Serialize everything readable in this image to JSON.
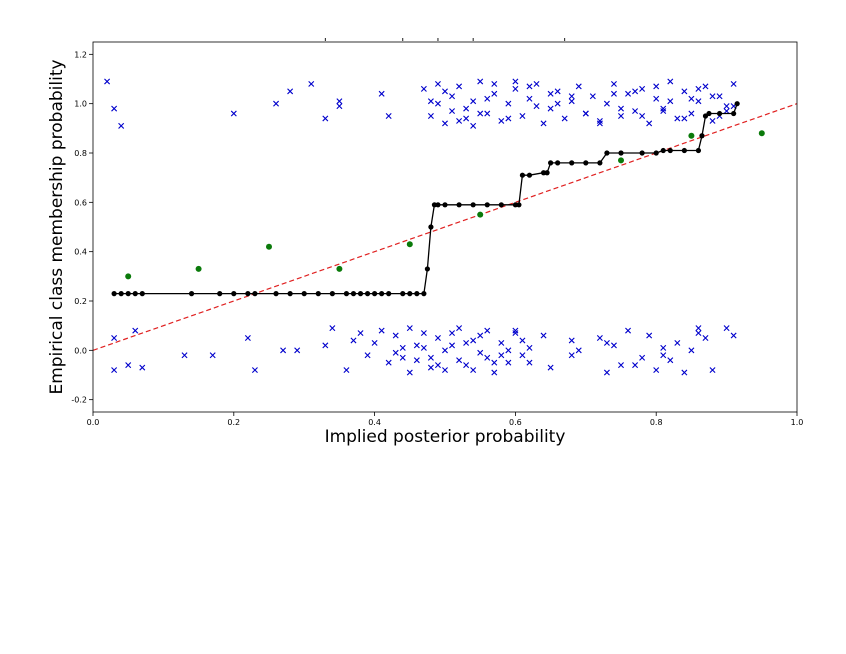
{
  "chart_data": {
    "type": "scatter",
    "xlabel": "Implied posterior probability",
    "ylabel": "Empirical class membership probability",
    "xlim": [
      0.0,
      1.0
    ],
    "ylim": [
      -0.25,
      1.25
    ],
    "x_ticks": [
      0.0,
      0.2,
      0.4,
      0.6,
      0.8,
      1.0
    ],
    "x_tick_labels": [
      "0.0",
      "0.2",
      "0.4",
      "0.6",
      "0.8",
      "1.0"
    ],
    "y_ticks": [
      -0.2,
      0.0,
      0.2,
      0.4,
      0.6,
      0.8,
      1.0,
      1.2
    ],
    "y_tick_labels": [
      "-0.2",
      "0.0",
      "0.2",
      "0.4",
      "0.6",
      "0.8",
      "1.0",
      "1.2"
    ],
    "grid": false,
    "legend": "none",
    "colors": {
      "class_points": "#0000cc",
      "calibration_curve": "#000000",
      "binned_points": "#0a7a0a",
      "reference_line": "#e02020"
    },
    "series": [
      {
        "kind": "reference_line",
        "style": "dashed",
        "x": [
          0.0,
          1.0
        ],
        "y": [
          0.0,
          1.0
        ]
      },
      {
        "kind": "step_curve",
        "marker": "circle",
        "x": [
          0.03,
          0.04,
          0.05,
          0.06,
          0.07,
          0.14,
          0.18,
          0.2,
          0.22,
          0.23,
          0.26,
          0.28,
          0.3,
          0.32,
          0.34,
          0.36,
          0.37,
          0.38,
          0.39,
          0.4,
          0.41,
          0.42,
          0.44,
          0.45,
          0.46,
          0.47,
          0.475,
          0.48,
          0.485,
          0.49,
          0.5,
          0.52,
          0.54,
          0.56,
          0.58,
          0.6,
          0.605,
          0.61,
          0.62,
          0.64,
          0.645,
          0.65,
          0.66,
          0.68,
          0.7,
          0.72,
          0.73,
          0.75,
          0.78,
          0.8,
          0.81,
          0.82,
          0.84,
          0.86,
          0.865,
          0.87,
          0.875,
          0.89,
          0.91,
          0.915
        ],
        "y": [
          0.23,
          0.23,
          0.23,
          0.23,
          0.23,
          0.23,
          0.23,
          0.23,
          0.23,
          0.23,
          0.23,
          0.23,
          0.23,
          0.23,
          0.23,
          0.23,
          0.23,
          0.23,
          0.23,
          0.23,
          0.23,
          0.23,
          0.23,
          0.23,
          0.23,
          0.23,
          0.33,
          0.5,
          0.59,
          0.59,
          0.59,
          0.59,
          0.59,
          0.59,
          0.59,
          0.59,
          0.59,
          0.71,
          0.71,
          0.72,
          0.72,
          0.76,
          0.76,
          0.76,
          0.76,
          0.76,
          0.8,
          0.8,
          0.8,
          0.8,
          0.81,
          0.81,
          0.81,
          0.81,
          0.87,
          0.95,
          0.96,
          0.96,
          0.96,
          1.0
        ]
      },
      {
        "kind": "binned_points",
        "marker": "circle",
        "x": [
          0.05,
          0.15,
          0.25,
          0.35,
          0.45,
          0.55,
          0.75,
          0.85,
          0.95
        ],
        "y": [
          0.3,
          0.33,
          0.42,
          0.33,
          0.43,
          0.55,
          0.77,
          0.87,
          0.88
        ]
      },
      {
        "kind": "class_1_points",
        "marker": "x",
        "x": [
          0.02,
          0.03,
          0.04,
          0.2,
          0.26,
          0.28,
          0.31,
          0.33,
          0.35,
          0.35,
          0.41,
          0.42,
          0.47,
          0.48,
          0.49,
          0.49,
          0.5,
          0.51,
          0.51,
          0.52,
          0.53,
          0.54,
          0.55,
          0.56,
          0.57,
          0.58,
          0.59,
          0.6,
          0.61,
          0.62,
          0.63,
          0.64,
          0.65,
          0.66,
          0.67,
          0.68,
          0.69,
          0.7,
          0.71,
          0.72,
          0.73,
          0.74,
          0.75,
          0.76,
          0.77,
          0.78,
          0.79,
          0.8,
          0.81,
          0.82,
          0.83,
          0.84,
          0.85,
          0.86,
          0.87,
          0.88,
          0.89,
          0.9,
          0.91,
          0.5,
          0.53,
          0.56,
          0.59,
          0.62,
          0.66,
          0.7,
          0.74,
          0.78,
          0.82,
          0.86,
          0.9,
          0.52,
          0.57,
          0.63,
          0.68,
          0.72,
          0.77,
          0.81,
          0.85,
          0.89,
          0.48,
          0.55,
          0.6,
          0.65,
          0.75,
          0.8,
          0.84,
          0.88,
          0.91,
          0.54
        ],
        "y": [
          1.09,
          0.98,
          0.91,
          0.96,
          1.0,
          1.05,
          1.08,
          0.94,
          1.01,
          0.99,
          1.04,
          0.95,
          1.06,
          0.95,
          1.0,
          1.08,
          0.92,
          1.03,
          0.97,
          1.07,
          0.94,
          1.01,
          1.09,
          0.96,
          1.04,
          0.93,
          1.0,
          1.06,
          0.95,
          1.02,
          1.08,
          0.92,
          0.98,
          1.05,
          0.94,
          1.01,
          1.07,
          0.96,
          1.03,
          0.93,
          1.0,
          1.08,
          0.95,
          1.04,
          0.97,
          1.06,
          0.92,
          1.02,
          0.98,
          1.09,
          0.94,
          1.05,
          0.96,
          1.01,
          1.07,
          0.93,
          1.03,
          0.99,
          1.08,
          1.05,
          0.98,
          1.02,
          0.94,
          1.07,
          1.0,
          0.96,
          1.04,
          0.95,
          1.01,
          1.06,
          0.97,
          0.93,
          1.08,
          0.99,
          1.03,
          0.92,
          1.05,
          0.97,
          1.02,
          0.95,
          1.01,
          0.96,
          1.09,
          1.04,
          0.98,
          1.07,
          0.94,
          1.03,
          0.99,
          0.91
        ]
      },
      {
        "kind": "class_0_points",
        "marker": "x",
        "x": [
          0.03,
          0.03,
          0.05,
          0.06,
          0.07,
          0.13,
          0.17,
          0.22,
          0.23,
          0.27,
          0.29,
          0.33,
          0.34,
          0.36,
          0.37,
          0.38,
          0.39,
          0.4,
          0.41,
          0.42,
          0.43,
          0.44,
          0.45,
          0.45,
          0.46,
          0.47,
          0.48,
          0.49,
          0.5,
          0.51,
          0.52,
          0.53,
          0.54,
          0.55,
          0.56,
          0.57,
          0.58,
          0.59,
          0.6,
          0.61,
          0.62,
          0.64,
          0.65,
          0.68,
          0.68,
          0.72,
          0.73,
          0.74,
          0.75,
          0.76,
          0.78,
          0.79,
          0.8,
          0.81,
          0.82,
          0.83,
          0.84,
          0.85,
          0.86,
          0.87,
          0.88,
          0.9,
          0.91,
          0.5,
          0.52,
          0.55,
          0.58,
          0.61,
          0.46,
          0.48,
          0.53,
          0.57,
          0.6,
          0.49,
          0.54,
          0.44,
          0.51,
          0.56,
          0.47,
          0.59,
          0.43,
          0.62,
          0.77,
          0.81,
          0.86,
          0.73,
          0.69
        ],
        "y": [
          0.05,
          -0.08,
          -0.06,
          0.08,
          -0.07,
          -0.02,
          -0.02,
          0.05,
          -0.08,
          0.0,
          0.0,
          0.02,
          0.09,
          -0.08,
          0.04,
          0.07,
          -0.02,
          0.03,
          0.08,
          -0.05,
          0.06,
          0.01,
          -0.09,
          0.09,
          -0.04,
          0.07,
          -0.03,
          0.05,
          -0.08,
          0.02,
          0.09,
          -0.06,
          0.04,
          -0.01,
          0.08,
          -0.09,
          0.03,
          -0.05,
          0.07,
          -0.02,
          0.01,
          0.06,
          -0.07,
          0.04,
          -0.02,
          0.05,
          -0.09,
          0.02,
          -0.06,
          0.08,
          -0.03,
          0.06,
          -0.08,
          0.01,
          -0.04,
          0.03,
          -0.09,
          0.0,
          0.07,
          0.05,
          -0.08,
          0.09,
          0.06,
          0.0,
          -0.04,
          0.06,
          -0.02,
          0.04,
          0.02,
          -0.07,
          0.03,
          -0.05,
          0.08,
          -0.06,
          -0.08,
          -0.03,
          0.07,
          -0.03,
          0.01,
          0.0,
          -0.01,
          -0.05,
          -0.06,
          -0.02,
          0.09,
          0.03,
          0.0
        ]
      }
    ],
    "top_partial_ticks_x": [
      0.33,
      0.44,
      0.49,
      0.54,
      0.67
    ]
  }
}
